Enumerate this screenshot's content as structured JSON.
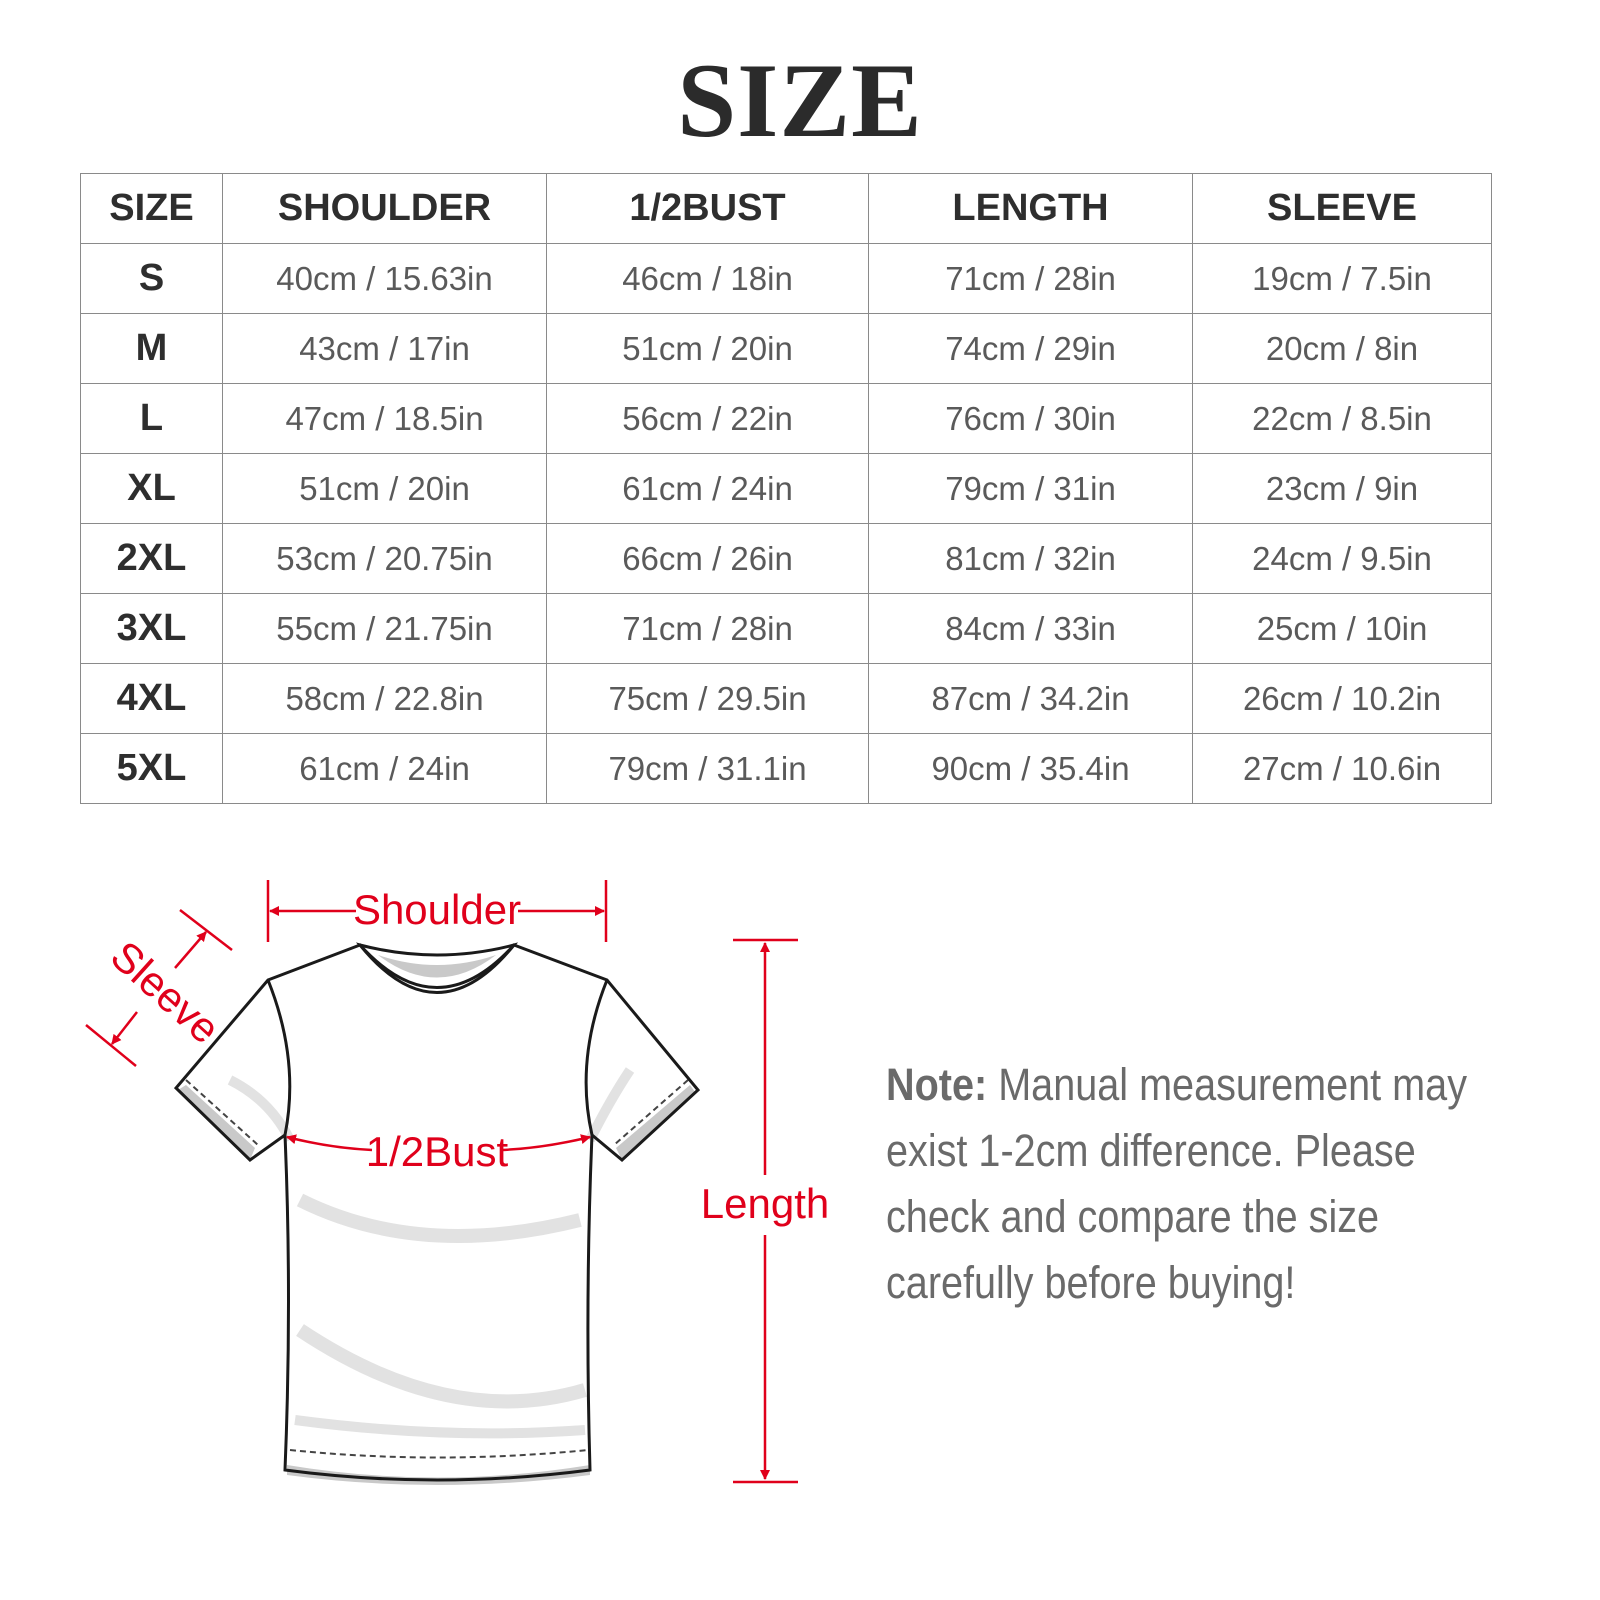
{
  "title": "SIZE",
  "table": {
    "headers": [
      "SIZE",
      "SHOULDER",
      "1/2BUST",
      "LENGTH",
      "SLEEVE"
    ],
    "rows": [
      [
        "S",
        "40cm / 15.63in",
        "46cm / 18in",
        "71cm / 28in",
        "19cm / 7.5in"
      ],
      [
        "M",
        "43cm / 17in",
        "51cm / 20in",
        "74cm / 29in",
        "20cm / 8in"
      ],
      [
        "L",
        "47cm / 18.5in",
        "56cm / 22in",
        "76cm / 30in",
        "22cm / 8.5in"
      ],
      [
        "XL",
        "51cm / 20in",
        "61cm / 24in",
        "79cm / 31in",
        "23cm / 9in"
      ],
      [
        "2XL",
        "53cm / 20.75in",
        "66cm / 26in",
        "81cm / 32in",
        "24cm / 9.5in"
      ],
      [
        "3XL",
        "55cm / 21.75in",
        "71cm / 28in",
        "84cm / 33in",
        "25cm / 10in"
      ],
      [
        "4XL",
        "58cm / 22.8in",
        "75cm / 29.5in",
        "87cm / 34.2in",
        "26cm / 10.2in"
      ],
      [
        "5XL",
        "61cm / 24in",
        "79cm / 31.1in",
        "90cm / 35.4in",
        "27cm / 10.6in"
      ]
    ]
  },
  "diagram": {
    "labels": {
      "shoulder": "Shoulder",
      "sleeve": "Sleeve",
      "bust": "1/2Bust",
      "length": "Length"
    },
    "accent_color": "#e0001b"
  },
  "note": {
    "label": "Note:",
    "text": " Manual measurement may exist 1-2cm difference. Please check and compare the size carefully before buying!"
  }
}
